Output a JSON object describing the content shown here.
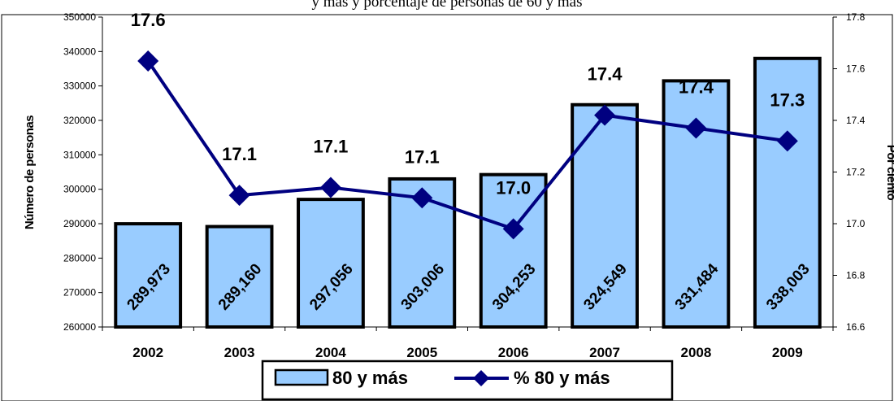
{
  "title": "y más y porcentaje de personas de 60 y más",
  "colors": {
    "bar_fill": "#99ccff",
    "bar_stroke": "#000000",
    "line": "#000080",
    "marker": "#000080",
    "frame": "#000000"
  },
  "chart_data": {
    "type": "bar",
    "categories": [
      "2002",
      "2003",
      "2004",
      "2005",
      "2006",
      "2007",
      "2008",
      "2009"
    ],
    "ylabel": "Número de personas",
    "y2label": "Por ciento",
    "ylim": [
      260000,
      350000
    ],
    "y2lim": [
      16.6,
      17.8
    ],
    "yticks": [
      "260000",
      "270000",
      "280000",
      "290000",
      "300000",
      "310000",
      "320000",
      "330000",
      "340000",
      "350000"
    ],
    "y2ticks": [
      "16.6",
      "16.8",
      "17.0",
      "17.2",
      "17.4",
      "17.6",
      "17.8"
    ],
    "grid": false,
    "legend_position": "bottom",
    "series": [
      {
        "name": "80 y más",
        "type": "bar",
        "axis": "left",
        "values": [
          289973,
          289160,
          297056,
          303006,
          304253,
          324549,
          331484,
          338003
        ],
        "labels": [
          "289,973",
          "289,160",
          "297,056",
          "303,006",
          "304,253",
          "324,549",
          "331,484",
          "338,003"
        ]
      },
      {
        "name": "% 80 y más",
        "type": "line",
        "axis": "right",
        "values": [
          17.63,
          17.11,
          17.14,
          17.1,
          16.98,
          17.42,
          17.37,
          17.32
        ],
        "labels": [
          "17.6",
          "17.1",
          "17.1",
          "17.1",
          "17.0",
          "17.4",
          "17.4",
          "17.3"
        ]
      }
    ]
  }
}
